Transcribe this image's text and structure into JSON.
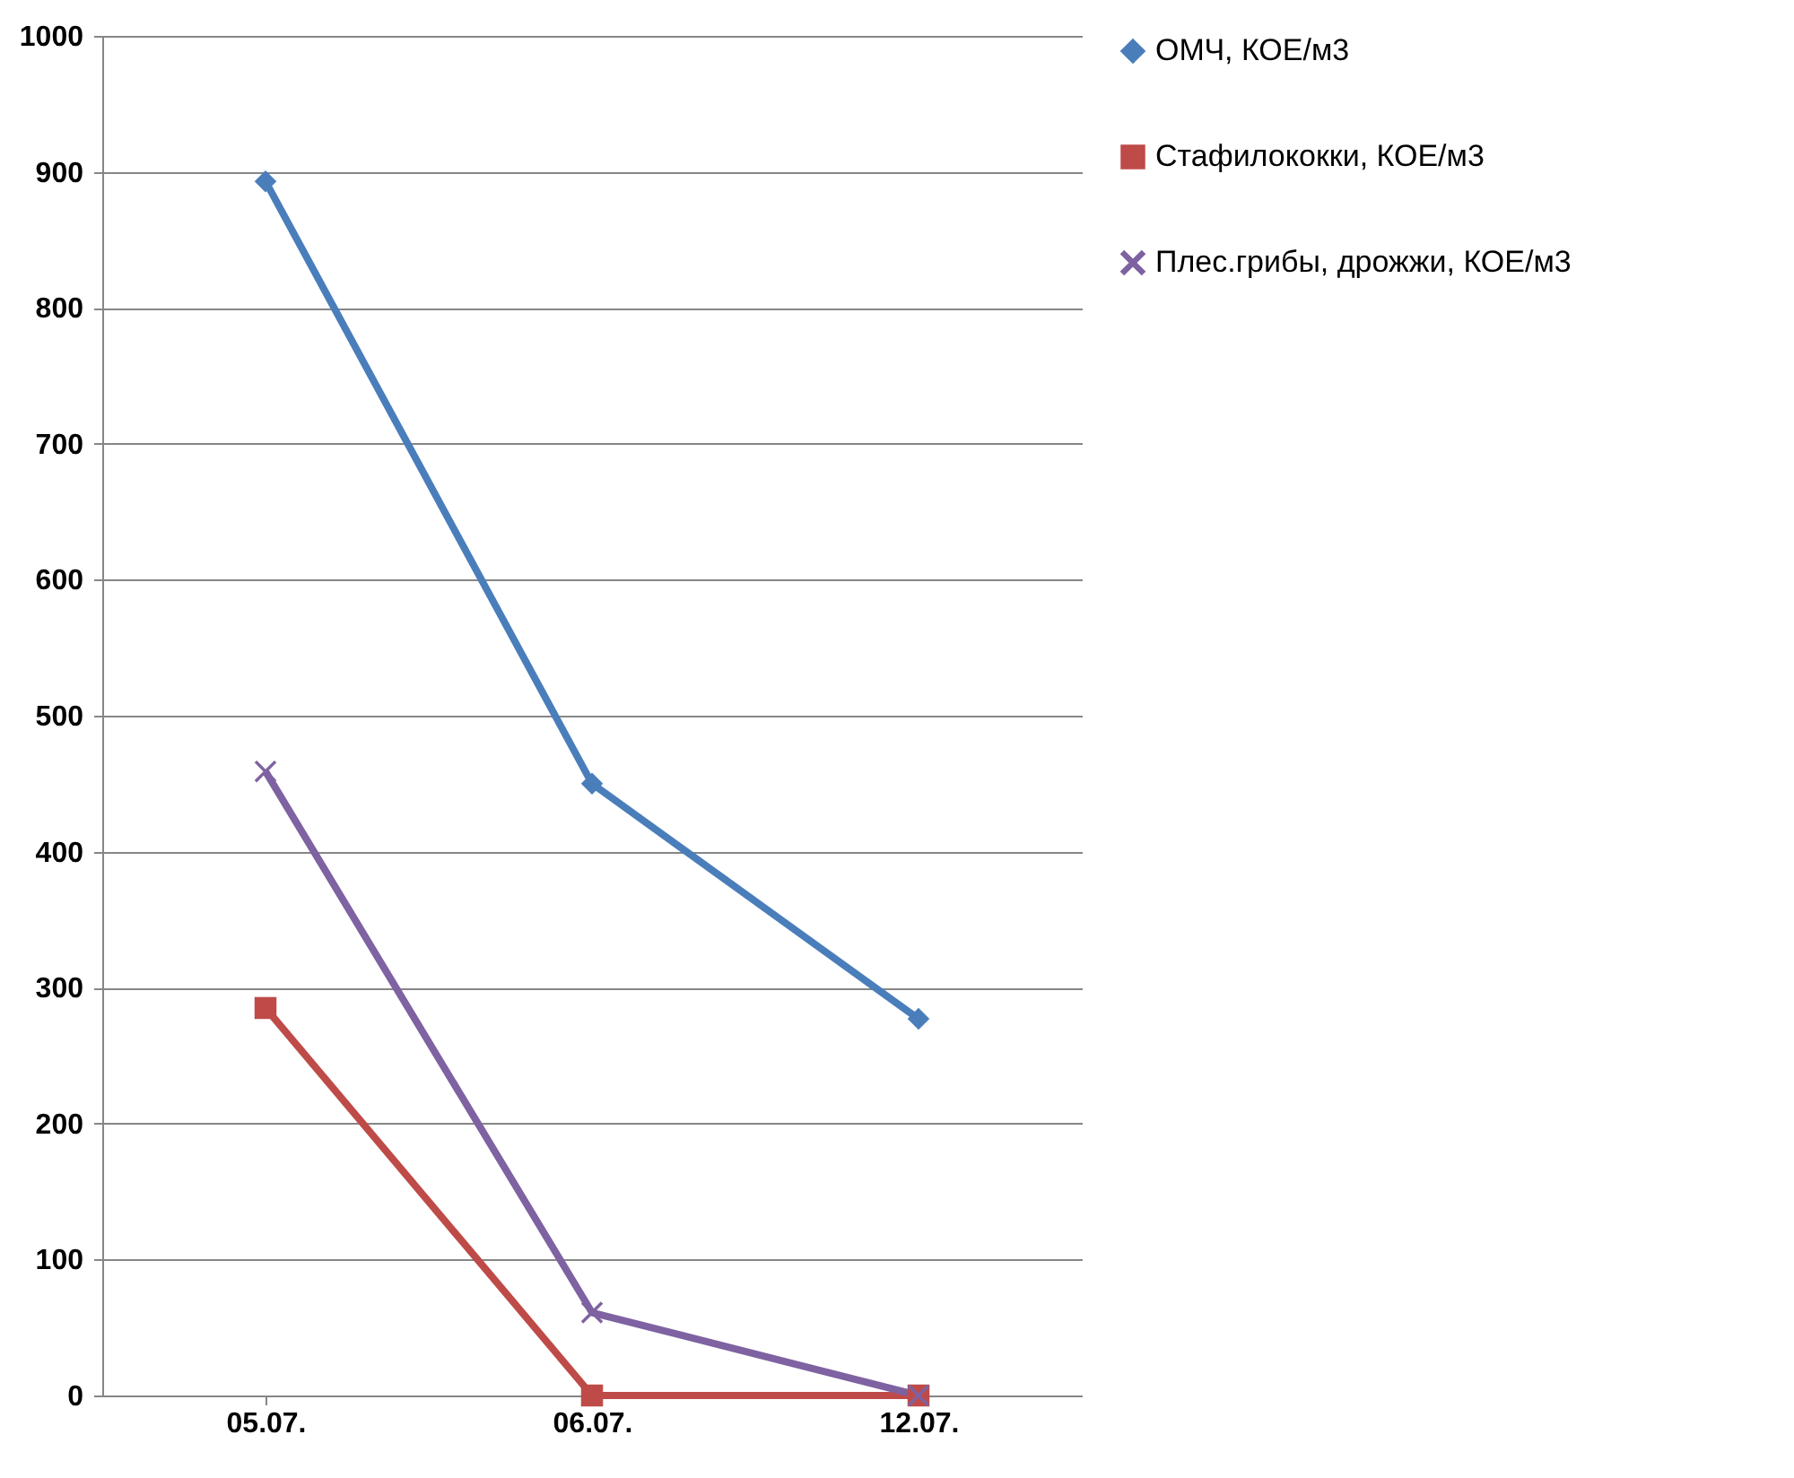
{
  "chart_data": {
    "type": "line",
    "categories": [
      "05.07.",
      "06.07.",
      "12.07."
    ],
    "ylim": [
      0,
      1000
    ],
    "yticks": [
      0,
      100,
      200,
      300,
      400,
      500,
      600,
      700,
      800,
      900,
      1000
    ],
    "grid": "y",
    "legend": "right",
    "line_style": "solid",
    "series": [
      {
        "name": "ОМЧ, КОЕ/м3",
        "color": "#4a7ebb",
        "marker": "diamond",
        "values": [
          893,
          450,
          277
        ]
      },
      {
        "name": "Стафилококки, КОЕ/м3",
        "color": "#be4b48",
        "marker": "square",
        "values": [
          285,
          0,
          0
        ]
      },
      {
        "name": "Плес.грибы, дрожжи, КОЕ/м3",
        "color": "#7e62a1",
        "marker": "cross",
        "values": [
          459,
          61,
          0
        ]
      }
    ]
  }
}
